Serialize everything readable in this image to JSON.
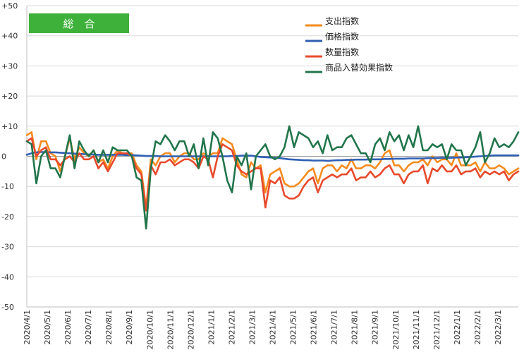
{
  "chart_data": {
    "type": "line",
    "label_box": {
      "text": "総　合",
      "color": "#3eb13b"
    },
    "y_ticks": [
      "+50",
      "+40",
      "+30",
      "+20",
      "+10",
      "0",
      "-10",
      "-20",
      "-30",
      "-40",
      "-50"
    ],
    "ylim": [
      -50,
      50
    ],
    "x_tick_labels": [
      "2020/4/1",
      "2020/5/1",
      "2020/6/1",
      "2020/7/1",
      "2020/8/1",
      "2020/9/1",
      "2020/10/1",
      "2020/11/1",
      "2020/12/1",
      "2021/1/1",
      "2021/2/1",
      "2021/3/1",
      "2021/4/1",
      "2021/5/1",
      "2021/6/1",
      "2021/7/1",
      "2021/8/1",
      "2021/9/1",
      "2021/10/1",
      "2021/11/1",
      "2021/12/1",
      "2022/1/1",
      "2022/2/1",
      "2022/3/1"
    ],
    "x_count": 104,
    "grid": "horizontal",
    "legend_position": "top-right",
    "series": [
      {
        "name": "支出指数",
        "color": "#f58b1f",
        "values": [
          7,
          8,
          -1,
          5,
          5,
          1,
          0,
          -5,
          0,
          6,
          -1,
          3,
          1,
          0,
          2,
          -2,
          -1,
          -4,
          0,
          2,
          1,
          1,
          1,
          -3,
          -5,
          -17,
          -1,
          -3,
          0,
          1,
          1,
          -2,
          0,
          1,
          1,
          -1,
          -1,
          1,
          0,
          1,
          1,
          6,
          5,
          4,
          -1,
          -6,
          -7,
          -2,
          -4,
          -3,
          -12,
          -6,
          -5,
          -4,
          -9,
          -10,
          -10,
          -9,
          -7,
          -5,
          -4,
          -9,
          -4,
          -3,
          -3,
          -5,
          -3,
          -4,
          -1,
          -4,
          -4,
          -3,
          -3,
          -4,
          -2,
          1,
          2,
          -3,
          -3,
          -5,
          -3,
          -2,
          -2,
          -1,
          -3,
          0,
          -2,
          -1,
          -1,
          -3,
          1,
          -3,
          -3,
          -3,
          -2,
          -5,
          -2,
          -4,
          -4,
          -3,
          -4,
          -6,
          -5,
          -4
        ]
      },
      {
        "name": "価格指数",
        "color": "#2f5fb3",
        "values": [
          0.5,
          1,
          1.3,
          1.4,
          1.4,
          1.3,
          1.3,
          1.2,
          1.1,
          1,
          0.9,
          0.8,
          0.7,
          0.6,
          0.6,
          0.5,
          0.5,
          0.5,
          0.5,
          0.5,
          0.5,
          0.4,
          0.4,
          0.3,
          0.2,
          0.1,
          0.1,
          0.1,
          0,
          0,
          0,
          0,
          0,
          0,
          0,
          0,
          0,
          0,
          0,
          0,
          0,
          0,
          0,
          0.1,
          0.1,
          0.2,
          0.2,
          0.2,
          0,
          -0.2,
          -0.3,
          -0.4,
          -0.5,
          -0.6,
          -0.8,
          -1,
          -1.1,
          -1.2,
          -1.3,
          -1.3,
          -1.4,
          -1.4,
          -1.4,
          -1.5,
          -1.4,
          -1.3,
          -1.3,
          -1.2,
          -1.2,
          -1.1,
          -1.1,
          -1.1,
          -1,
          -1,
          -1,
          -0.9,
          -0.9,
          -0.8,
          -0.8,
          -0.8,
          -0.7,
          -0.7,
          -0.7,
          -0.7,
          -0.6,
          -0.6,
          -0.6,
          -0.5,
          -0.5,
          -0.5,
          -0.4,
          -0.4,
          -0.3,
          -0.2,
          -0.1,
          0,
          0.1,
          0.2,
          0.3,
          0.3,
          0.3,
          0.3,
          0.3,
          0.3
        ]
      },
      {
        "name": "数量指数",
        "color": "#e84a2c",
        "values": [
          5,
          6,
          0,
          2,
          3,
          -1,
          -1,
          -3,
          -1,
          0,
          -2,
          1,
          -1,
          -1,
          0,
          -4,
          -2,
          -5,
          -2,
          1,
          1,
          1,
          0,
          -4,
          -6,
          -18,
          -3,
          -6,
          -2,
          -2,
          -1,
          -3,
          -2,
          -1,
          -1,
          -2,
          -4,
          0,
          -1,
          -7,
          0,
          4,
          3,
          2,
          -3,
          -5,
          -6,
          -5,
          -4,
          -4,
          -17,
          -8,
          -9,
          -7,
          -13,
          -14,
          -14,
          -13,
          -10,
          -8,
          -7,
          -12,
          -8,
          -7,
          -6,
          -7,
          -6,
          -6,
          -4,
          -8,
          -7,
          -7,
          -5,
          -7,
          -6,
          -4,
          -3,
          -6,
          -6,
          -9,
          -6,
          -5,
          -5,
          -3,
          -9,
          -4,
          -5,
          -3,
          -5,
          -5,
          -3,
          -6,
          -5,
          -5,
          -4,
          -7,
          -5,
          -6,
          -5,
          -6,
          -5,
          -8,
          -6,
          -5
        ]
      },
      {
        "name": "商品入替効果指数",
        "color": "#21754b",
        "values": [
          5,
          4,
          -9,
          0,
          2,
          -4,
          -4,
          -7,
          0,
          7,
          -4,
          5,
          2,
          0,
          2,
          -2,
          2,
          -2,
          3,
          2,
          2,
          2,
          0,
          -7,
          -8,
          -24,
          -4,
          5,
          4,
          7,
          5,
          2,
          5,
          5,
          0,
          4,
          -4,
          6,
          -3,
          8,
          6,
          0,
          -8,
          -12,
          0,
          -3,
          1,
          -11,
          0,
          2,
          4,
          0,
          -1,
          0,
          3,
          10,
          3,
          8,
          7,
          6,
          3,
          5,
          1,
          7,
          2,
          3,
          3,
          6,
          7,
          4,
          1,
          1,
          -2,
          4,
          6,
          2,
          8,
          5,
          7,
          2,
          7,
          3,
          10,
          2,
          2,
          4,
          3,
          4,
          -1,
          4,
          2,
          2,
          -3,
          0,
          3,
          8,
          -2,
          1,
          6,
          3,
          4,
          3,
          5,
          8
        ]
      }
    ]
  }
}
